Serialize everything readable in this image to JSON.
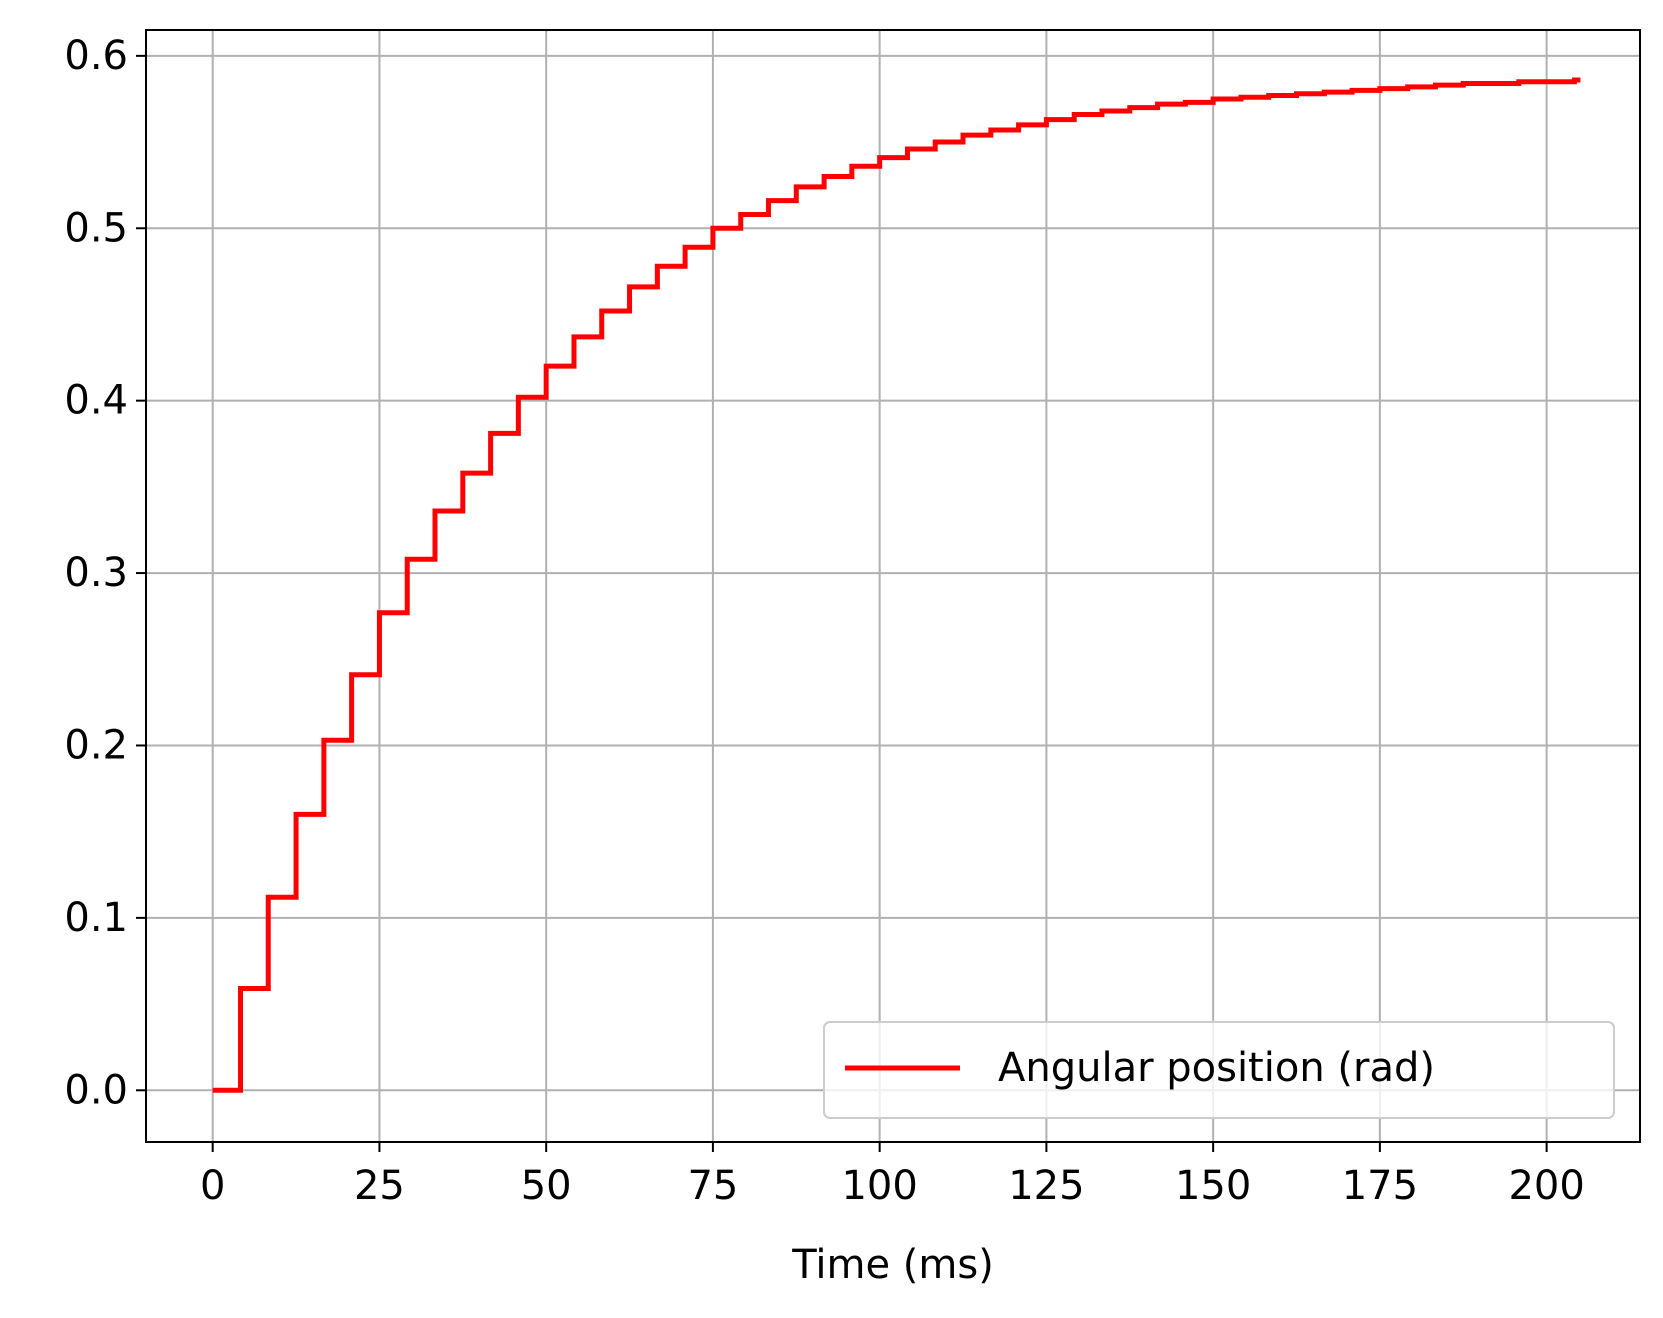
{
  "chart_data": {
    "type": "line",
    "drawstyle": "steps-post",
    "title": "",
    "xlabel": "Time (ms)",
    "ylabel": "",
    "xlim": [
      -10,
      214
    ],
    "ylim": [
      -0.03,
      0.615
    ],
    "xticks": [
      0,
      25,
      50,
      75,
      100,
      125,
      150,
      175,
      200
    ],
    "xtick_labels": [
      "0",
      "25",
      "50",
      "75",
      "100",
      "125",
      "150",
      "175",
      "200"
    ],
    "yticks": [
      0.0,
      0.1,
      0.2,
      0.3,
      0.4,
      0.5,
      0.6
    ],
    "ytick_labels": [
      "0.0",
      "0.1",
      "0.2",
      "0.3",
      "0.4",
      "0.5",
      "0.6"
    ],
    "grid": true,
    "legend_position": "lower-right",
    "colors": {
      "series": "#ff0000",
      "grid": "#b0b0b0",
      "axes": "#000000"
    },
    "series": [
      {
        "name": "Angular position (rad)",
        "x": [
          0,
          4.17,
          8.33,
          12.5,
          16.67,
          20.83,
          25,
          29.17,
          33.33,
          37.5,
          41.67,
          45.83,
          50,
          54.17,
          58.33,
          62.5,
          66.67,
          70.83,
          75,
          79.17,
          83.33,
          87.5,
          91.67,
          95.83,
          100,
          104.17,
          108.33,
          112.5,
          116.67,
          120.83,
          125,
          129.17,
          133.33,
          137.5,
          141.67,
          145.83,
          150,
          154.17,
          158.33,
          162.5,
          166.67,
          170.83,
          175,
          179.17,
          183.33,
          187.5,
          191.67,
          195.83,
          200,
          204.17
        ],
        "y": [
          0.0,
          0.059,
          0.112,
          0.16,
          0.203,
          0.241,
          0.277,
          0.308,
          0.336,
          0.358,
          0.381,
          0.402,
          0.42,
          0.437,
          0.452,
          0.466,
          0.478,
          0.489,
          0.5,
          0.508,
          0.516,
          0.524,
          0.53,
          0.536,
          0.541,
          0.546,
          0.55,
          0.554,
          0.557,
          0.56,
          0.563,
          0.566,
          0.568,
          0.57,
          0.572,
          0.573,
          0.575,
          0.576,
          0.577,
          0.578,
          0.579,
          0.58,
          0.581,
          0.582,
          0.583,
          0.584,
          0.584,
          0.585,
          0.585,
          0.586
        ]
      }
    ]
  }
}
